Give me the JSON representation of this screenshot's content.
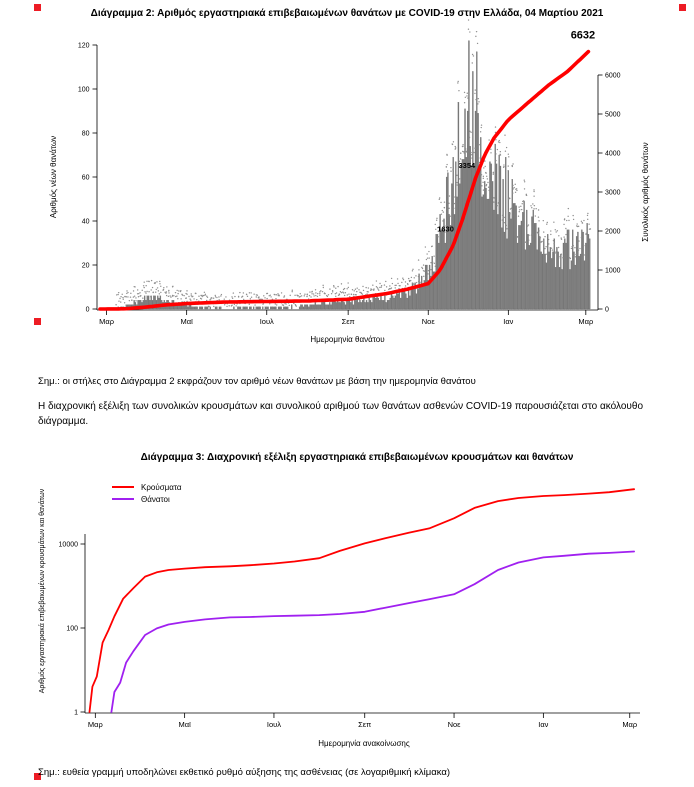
{
  "colors": {
    "red": "#ff0000",
    "purple": "#a020f0",
    "bar": "#7a7a7a",
    "marker": "#ed1c24",
    "text": "#000000"
  },
  "notes": {
    "figure2": "Σημ.: οι στήλες στο Διάγραμμα 2 εκφράζουν τον αριθμό νέων θανάτων με βάση την ημερομηνία θανάτου",
    "figure3": "Σημ.: ευθεία γραμμή υποδηλώνει εκθετικό ρυθμό αύξησης της ασθένειας (σε λογαριθμική κλίμακα)"
  },
  "paragraph": "Η διαχρονική εξέλιξη των συνολικών κρουσμάτων και συνολικού αριθμού των θανάτων ασθενών COVID-19 παρουσιάζεται στο ακόλουθο διάγραμμα.",
  "chart_data": [
    {
      "type": "bar+line",
      "title": "Διάγραμμα 2: Αριθμός εργαστηριακά επιβεβαιωμένων θανάτων με COVID-19 στην Ελλάδα, 04 Μαρτίου 2021",
      "xlabel": "Ημερομηνία θανάτου",
      "ylabel": "Αριθμός νέων θανάτων",
      "y2label": "Συνολικός αριθμός θανάτων",
      "x_ticks": [
        "Μαρ",
        "Μαϊ",
        "Ιουλ",
        "Σεπ",
        "Νοε",
        "Ιαν",
        "Μαρ"
      ],
      "x_tick_dates": [
        "2020-03-01",
        "2020-05-01",
        "2020-07-01",
        "2020-09-01",
        "2020-11-01",
        "2021-01-01",
        "2021-03-01"
      ],
      "x_range": [
        "2020-02-25",
        "2021-03-08"
      ],
      "ylim": [
        0,
        120
      ],
      "y_ticks": [
        0,
        20,
        40,
        60,
        80,
        100,
        120
      ],
      "y2lim": [
        0,
        6000
      ],
      "y2_ticks": [
        0,
        1000,
        2000,
        3000,
        4000,
        5000,
        6000
      ],
      "bar_color": "#7a7a7a",
      "line_color": "#ff0000",
      "daily_new_deaths_weekly_envelope": [
        {
          "date": "2020-03-09",
          "value": 0.4
        },
        {
          "date": "2020-03-15",
          "value": 1.2
        },
        {
          "date": "2020-03-22",
          "value": 3
        },
        {
          "date": "2020-03-29",
          "value": 4.5
        },
        {
          "date": "2020-04-05",
          "value": 5.5
        },
        {
          "date": "2020-04-12",
          "value": 5
        },
        {
          "date": "2020-04-19",
          "value": 3.5
        },
        {
          "date": "2020-04-26",
          "value": 2.5
        },
        {
          "date": "2020-05-03",
          "value": 1.5
        },
        {
          "date": "2020-05-10",
          "value": 1
        },
        {
          "date": "2020-05-17",
          "value": 0.8
        },
        {
          "date": "2020-05-24",
          "value": 0.6
        },
        {
          "date": "2020-05-31",
          "value": 0.5
        },
        {
          "date": "2020-06-14",
          "value": 0.6
        },
        {
          "date": "2020-06-28",
          "value": 1
        },
        {
          "date": "2020-07-12",
          "value": 1.2
        },
        {
          "date": "2020-07-26",
          "value": 1.5
        },
        {
          "date": "2020-08-09",
          "value": 2.5
        },
        {
          "date": "2020-08-23",
          "value": 3.5
        },
        {
          "date": "2020-09-06",
          "value": 4
        },
        {
          "date": "2020-09-20",
          "value": 5
        },
        {
          "date": "2020-10-04",
          "value": 6
        },
        {
          "date": "2020-10-11",
          "value": 7
        },
        {
          "date": "2020-10-18",
          "value": 9
        },
        {
          "date": "2020-10-25",
          "value": 12
        },
        {
          "date": "2020-11-01",
          "value": 17
        },
        {
          "date": "2020-11-08",
          "value": 28
        },
        {
          "date": "2020-11-15",
          "value": 48
        },
        {
          "date": "2020-11-22",
          "value": 75
        },
        {
          "date": "2020-11-29",
          "value": 100
        },
        {
          "date": "2020-12-06",
          "value": 96
        },
        {
          "date": "2020-12-13",
          "value": 82
        },
        {
          "date": "2020-12-20",
          "value": 68
        },
        {
          "date": "2020-12-27",
          "value": 58
        },
        {
          "date": "2021-01-03",
          "value": 48
        },
        {
          "date": "2021-01-10",
          "value": 42
        },
        {
          "date": "2021-01-17",
          "value": 37
        },
        {
          "date": "2021-01-24",
          "value": 33
        },
        {
          "date": "2021-01-31",
          "value": 30
        },
        {
          "date": "2021-02-07",
          "value": 29
        },
        {
          "date": "2021-02-14",
          "value": 28
        },
        {
          "date": "2021-02-21",
          "value": 30
        },
        {
          "date": "2021-02-28",
          "value": 33
        },
        {
          "date": "2021-03-04",
          "value": 36
        }
      ],
      "cumulative_deaths": [
        {
          "date": "2020-02-25",
          "value": 0
        },
        {
          "date": "2020-03-15",
          "value": 5
        },
        {
          "date": "2020-04-01",
          "value": 53
        },
        {
          "date": "2020-04-15",
          "value": 105
        },
        {
          "date": "2020-05-01",
          "value": 140
        },
        {
          "date": "2020-06-01",
          "value": 180
        },
        {
          "date": "2020-07-01",
          "value": 193
        },
        {
          "date": "2020-08-01",
          "value": 206
        },
        {
          "date": "2020-09-01",
          "value": 250
        },
        {
          "date": "2020-10-01",
          "value": 400
        },
        {
          "date": "2020-10-15",
          "value": 500
        },
        {
          "date": "2020-11-01",
          "value": 650
        },
        {
          "date": "2020-11-10",
          "value": 1000
        },
        {
          "date": "2020-11-20",
          "value": 1630
        },
        {
          "date": "2020-11-27",
          "value": 2290
        },
        {
          "date": "2020-12-07",
          "value": 3354
        },
        {
          "date": "2020-12-14",
          "value": 3950
        },
        {
          "date": "2020-12-21",
          "value": 4380
        },
        {
          "date": "2021-01-01",
          "value": 4850
        },
        {
          "date": "2021-01-15",
          "value": 5260
        },
        {
          "date": "2021-02-01",
          "value": 5750
        },
        {
          "date": "2021-02-15",
          "value": 6090
        },
        {
          "date": "2021-03-04",
          "value": 6632
        }
      ],
      "annotations": [
        {
          "date": "2020-11-20",
          "value": 1630,
          "label": "1630"
        },
        {
          "date": "2020-12-07",
          "value": 3354,
          "label": "3354"
        },
        {
          "date": "2021-03-04",
          "value": 6632,
          "label": "6632"
        }
      ]
    },
    {
      "type": "line",
      "title": "Διάγραμμα 3: Διαχρονική εξέλιξη εργαστηριακά επιβεβαιωμένων κρουσμάτων και θανάτων",
      "xlabel": "Ημερομηνία ανακοίνωσης",
      "ylabel": "Αριθμός εργαστηριακά επιβεβαιωμένων κρουσμάτων και θανάτων",
      "yscale": "log",
      "y_ticks": [
        1,
        100,
        10000
      ],
      "x_ticks": [
        "Μαρ",
        "Μαϊ",
        "Ιουλ",
        "Σεπ",
        "Νοε",
        "Ιαν",
        "Μαρ"
      ],
      "x_tick_dates": [
        "2020-03-01",
        "2020-05-01",
        "2020-07-01",
        "2020-09-01",
        "2020-11-01",
        "2021-01-01",
        "2021-03-01"
      ],
      "x_range": [
        "2020-02-25",
        "2021-03-08"
      ],
      "legend_position": "top-left",
      "series": [
        {
          "name": "Κρούσματα",
          "color": "#ff0000",
          "points": [
            {
              "date": "2020-02-26",
              "value": 1
            },
            {
              "date": "2020-02-28",
              "value": 4
            },
            {
              "date": "2020-03-02",
              "value": 7
            },
            {
              "date": "2020-03-06",
              "value": 45
            },
            {
              "date": "2020-03-10",
              "value": 89
            },
            {
              "date": "2020-03-14",
              "value": 190
            },
            {
              "date": "2020-03-20",
              "value": 495
            },
            {
              "date": "2020-03-27",
              "value": 892
            },
            {
              "date": "2020-04-04",
              "value": 1673
            },
            {
              "date": "2020-04-12",
              "value": 2114
            },
            {
              "date": "2020-04-20",
              "value": 2401
            },
            {
              "date": "2020-05-01",
              "value": 2591
            },
            {
              "date": "2020-05-15",
              "value": 2810
            },
            {
              "date": "2020-06-01",
              "value": 2937
            },
            {
              "date": "2020-06-15",
              "value": 3134
            },
            {
              "date": "2020-07-01",
              "value": 3432
            },
            {
              "date": "2020-07-15",
              "value": 3826
            },
            {
              "date": "2020-08-01",
              "value": 4587
            },
            {
              "date": "2020-08-15",
              "value": 6858
            },
            {
              "date": "2020-09-01",
              "value": 10317
            },
            {
              "date": "2020-09-15",
              "value": 13730
            },
            {
              "date": "2020-10-01",
              "value": 18475
            },
            {
              "date": "2020-10-15",
              "value": 23495
            },
            {
              "date": "2020-11-01",
              "value": 40929
            },
            {
              "date": "2020-11-15",
              "value": 72510
            },
            {
              "date": "2020-12-01",
              "value": 105271
            },
            {
              "date": "2020-12-15",
              "value": 124534
            },
            {
              "date": "2021-01-01",
              "value": 138850
            },
            {
              "date": "2021-01-15",
              "value": 146020
            },
            {
              "date": "2021-02-01",
              "value": 158716
            },
            {
              "date": "2021-02-15",
              "value": 171542
            },
            {
              "date": "2021-03-04",
              "value": 201677
            }
          ]
        },
        {
          "name": "Θάνατοι",
          "color": "#a020f0",
          "points": [
            {
              "date": "2020-03-12",
              "value": 1
            },
            {
              "date": "2020-03-14",
              "value": 3
            },
            {
              "date": "2020-03-18",
              "value": 5
            },
            {
              "date": "2020-03-22",
              "value": 15
            },
            {
              "date": "2020-03-27",
              "value": 28
            },
            {
              "date": "2020-04-04",
              "value": 68
            },
            {
              "date": "2020-04-12",
              "value": 98
            },
            {
              "date": "2020-04-20",
              "value": 121
            },
            {
              "date": "2020-05-01",
              "value": 140
            },
            {
              "date": "2020-05-15",
              "value": 160
            },
            {
              "date": "2020-06-01",
              "value": 179
            },
            {
              "date": "2020-06-15",
              "value": 183
            },
            {
              "date": "2020-07-01",
              "value": 192
            },
            {
              "date": "2020-07-15",
              "value": 196
            },
            {
              "date": "2020-08-01",
              "value": 203
            },
            {
              "date": "2020-08-15",
              "value": 216
            },
            {
              "date": "2020-09-01",
              "value": 243
            },
            {
              "date": "2020-09-15",
              "value": 305
            },
            {
              "date": "2020-10-01",
              "value": 391
            },
            {
              "date": "2020-10-15",
              "value": 482
            },
            {
              "date": "2020-11-01",
              "value": 635
            },
            {
              "date": "2020-11-15",
              "value": 1106
            },
            {
              "date": "2020-12-01",
              "value": 2406
            },
            {
              "date": "2020-12-15",
              "value": 3625
            },
            {
              "date": "2021-01-01",
              "value": 4788
            },
            {
              "date": "2021-01-15",
              "value": 5227
            },
            {
              "date": "2021-02-01",
              "value": 5878
            },
            {
              "date": "2021-02-15",
              "value": 6152
            },
            {
              "date": "2021-03-04",
              "value": 6632
            }
          ]
        }
      ]
    }
  ]
}
